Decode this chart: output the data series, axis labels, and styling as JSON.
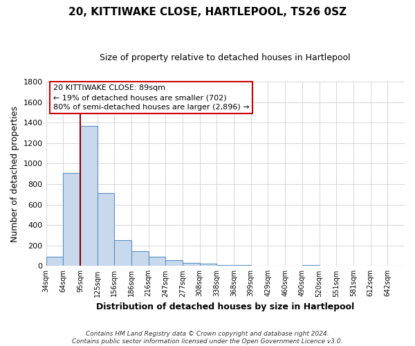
{
  "title": "20, KITTIWAKE CLOSE, HARTLEPOOL, TS26 0SZ",
  "subtitle": "Size of property relative to detached houses in Hartlepool",
  "xlabel": "Distribution of detached houses by size in Hartlepool",
  "ylabel": "Number of detached properties",
  "bar_values": [
    90,
    910,
    1370,
    710,
    250,
    145,
    90,
    55,
    30,
    25,
    10,
    10,
    0,
    0,
    0,
    10,
    0,
    0,
    0,
    0,
    0
  ],
  "bar_labels": [
    "34sqm",
    "64sqm",
    "95sqm",
    "125sqm",
    "156sqm",
    "186sqm",
    "216sqm",
    "247sqm",
    "277sqm",
    "308sqm",
    "338sqm",
    "368sqm",
    "399sqm",
    "429sqm",
    "460sqm",
    "490sqm",
    "520sqm",
    "551sqm",
    "581sqm",
    "612sqm",
    "642sqm"
  ],
  "bar_color": "#c9d9ed",
  "bar_edge_color": "#5a8fc0",
  "vline_x": 2.0,
  "vline_color": "#8b0000",
  "ylim": [
    0,
    1800
  ],
  "yticks": [
    0,
    200,
    400,
    600,
    800,
    1000,
    1200,
    1400,
    1600,
    1800
  ],
  "annotation_line1": "20 KITTIWAKE CLOSE: 89sqm",
  "annotation_line2": "← 19% of detached houses are smaller (702)",
  "annotation_line3": "80% of semi-detached houses are larger (2,896) →",
  "footer_text": "Contains HM Land Registry data © Crown copyright and database right 2024.\nContains public sector information licensed under the Open Government Licence v3.0.",
  "background_color": "#ffffff",
  "grid_color": "#d0d0d0"
}
